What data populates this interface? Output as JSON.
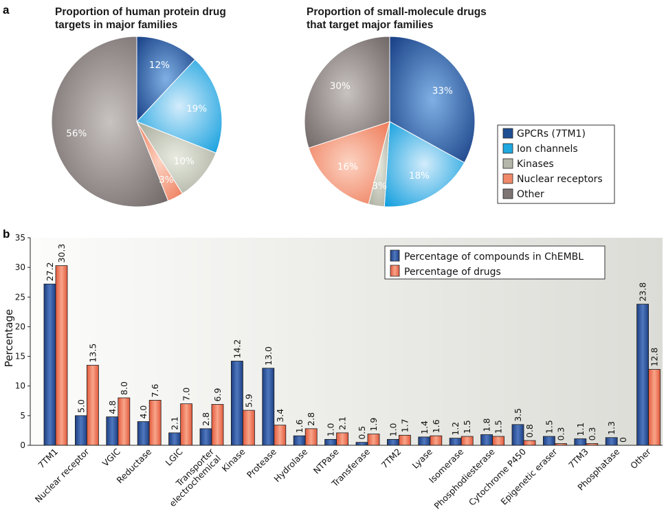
{
  "panel_labels": {
    "a": "a",
    "b": "b"
  },
  "colors": {
    "gpcr": "#1f4f93",
    "ion": "#20a8e0",
    "kinase": "#b4b7a9",
    "nuclear": "#f08a6a",
    "other": "#7d7574",
    "bar_blue": "#2a4f97",
    "bar_red": "#ee6a4e"
  },
  "chart_data": [
    {
      "type": "pie",
      "title_lines": [
        "Proportion of human protein drug",
        "targets in major families"
      ],
      "categories": [
        "GPCRs (7TM1)",
        "Ion channels",
        "Kinases",
        "Nuclear receptors",
        "Other"
      ],
      "values": [
        12,
        19,
        10,
        3,
        56
      ],
      "labels": [
        "12%",
        "19%",
        "10%",
        "3%",
        "56%"
      ]
    },
    {
      "type": "pie",
      "title_lines": [
        "Proportion of small-molecule drugs",
        "that target major families"
      ],
      "categories": [
        "GPCRs (7TM1)",
        "Ion channels",
        "Kinases",
        "Nuclear receptors",
        "Other"
      ],
      "values": [
        33,
        18,
        3,
        16,
        30
      ],
      "labels": [
        "33%",
        "18%",
        "3%",
        "16%",
        "30%"
      ],
      "legend": [
        "GPCRs (7TM1)",
        "Ion channels",
        "Kinases",
        "Nuclear receptors",
        "Other"
      ]
    },
    {
      "type": "bar",
      "ylabel": "Percentage",
      "ylim": [
        0,
        35
      ],
      "yticks": [
        "0",
        "5",
        "10",
        "15",
        "20",
        "25",
        "30",
        "35"
      ],
      "grid": false,
      "legend_position": "top-right",
      "categories": [
        [
          "7TM1"
        ],
        [
          "Nuclear receptor"
        ],
        [
          "VGIC"
        ],
        [
          "Reductase"
        ],
        [
          "LGIC"
        ],
        [
          "Transporter",
          "electrochemical"
        ],
        [
          "Kinase"
        ],
        [
          "Protease"
        ],
        [
          "Hydrolase"
        ],
        [
          "NTPase"
        ],
        [
          "Transferase"
        ],
        [
          "7TM2"
        ],
        [
          "Lyase"
        ],
        [
          "Isomerase"
        ],
        [
          "Phosphodiesterase"
        ],
        [
          "Cytochrome P450"
        ],
        [
          "Epigenetic eraser"
        ],
        [
          "7TM3"
        ],
        [
          "Phosphatase"
        ],
        [
          "Other"
        ]
      ],
      "series": [
        {
          "name": "Percentage of compounds in ChEMBL",
          "values": [
            27.2,
            5.0,
            4.8,
            4.0,
            2.1,
            2.8,
            14.2,
            13.0,
            1.6,
            1.0,
            0.5,
            1.0,
            1.4,
            1.2,
            1.8,
            3.5,
            1.5,
            1.1,
            1.3,
            23.8
          ],
          "labels": [
            "27.2",
            "5.0",
            "4.8",
            "4.0",
            "2.1",
            "2.8",
            "14.2",
            "13.0",
            "1.6",
            "1.0",
            "0.5",
            "1.0",
            "1.4",
            "1.2",
            "1.8",
            "3.5",
            "1.5",
            "1.1",
            "1.3",
            "23.8"
          ]
        },
        {
          "name": "Percentage of drugs",
          "values": [
            30.3,
            13.5,
            8.0,
            7.6,
            7.0,
            6.9,
            5.9,
            3.4,
            2.8,
            2.1,
            1.9,
            1.7,
            1.6,
            1.5,
            1.5,
            0.8,
            0.3,
            0.3,
            0,
            12.8
          ],
          "labels": [
            "30.3",
            "13.5",
            "8.0",
            "7.6",
            "7.0",
            "6.9",
            "5.9",
            "3.4",
            "2.8",
            "2.1",
            "1.9",
            "1.7",
            "1.6",
            "1.5",
            "1.5",
            "0.8",
            "0.3",
            "0.3",
            "0",
            "12.8"
          ]
        }
      ]
    }
  ]
}
